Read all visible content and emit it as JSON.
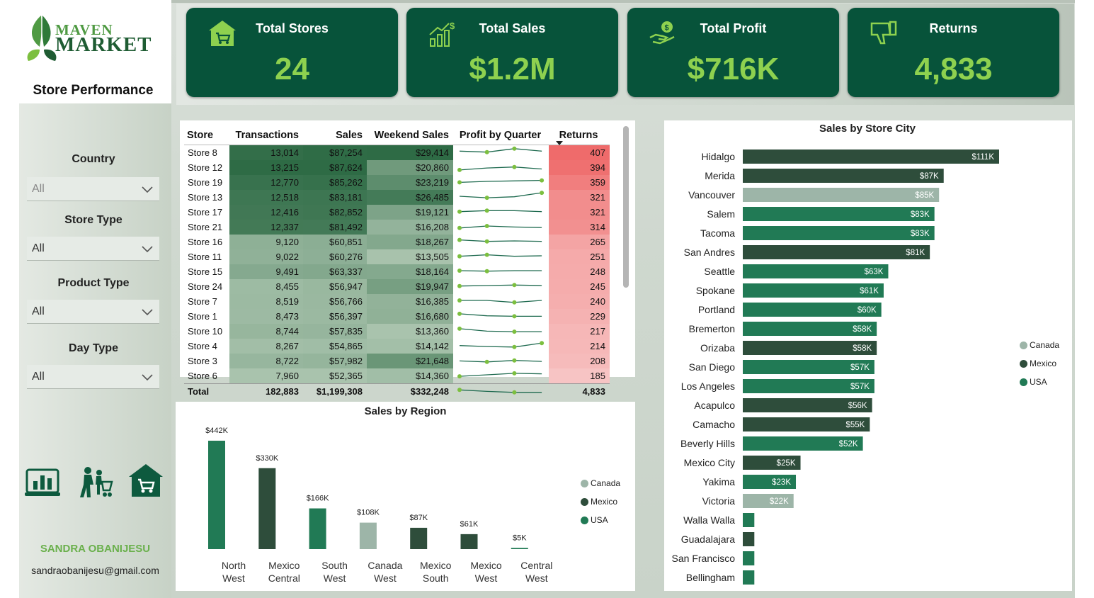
{
  "brand": {
    "line1": "MAVEN",
    "line2": "MARKET"
  },
  "sidebar": {
    "title": "Store Performance",
    "filters": [
      {
        "label": "Country",
        "value": "All"
      },
      {
        "label": "Store Type",
        "value": "All"
      },
      {
        "label": "Product Type",
        "value": "All"
      },
      {
        "label": "Day Type",
        "value": "All"
      }
    ],
    "nav_icons": [
      "bar-chart-icon",
      "shopping-people-icon",
      "store-icon"
    ],
    "author": {
      "name": "SANDRA OBANIJESU",
      "email": "sandraobanijesu@gmail.com"
    }
  },
  "kpis": [
    {
      "title": "Total Stores",
      "value": "24",
      "icon": "store-icon"
    },
    {
      "title": "Total Sales",
      "value": "$1.2M",
      "icon": "growth-chart-icon"
    },
    {
      "title": "Total Profit",
      "value": "$716K",
      "icon": "money-hand-icon"
    },
    {
      "title": "Returns",
      "value": "4,833",
      "icon": "thumbs-down-icon"
    }
  ],
  "colors": {
    "canada": "#9db5a8",
    "mexico": "#2e4d3b",
    "usa": "#217a55",
    "kpi_bg": "#07533a",
    "kpi_value": "#8ed14f",
    "returns": "#ef6b6b",
    "spark": "#1e6a4f",
    "spark_dot": "#7cbf3f"
  },
  "table": {
    "headers": [
      "Store",
      "Transactions",
      "Sales",
      "Weekend Sales",
      "Profit by Quarter",
      "Returns"
    ],
    "rows": [
      {
        "store": "Store 8",
        "transactions": "13,014",
        "sales": "$87,254",
        "weekend": "$29,414",
        "returns": "407",
        "spark": [
          0.55,
          0.45,
          0.8,
          0.55
        ]
      },
      {
        "store": "Store 12",
        "transactions": "13,215",
        "sales": "$87,624",
        "weekend": "$20,860",
        "returns": "394",
        "spark": [
          0.15,
          0.35,
          0.45,
          0.25
        ]
      },
      {
        "store": "Store 19",
        "transactions": "12,770",
        "sales": "$85,262",
        "weekend": "$23,219",
        "returns": "359",
        "spark": [
          0.4,
          0.5,
          0.55,
          0.6
        ]
      },
      {
        "store": "Store 13",
        "transactions": "12,518",
        "sales": "$83,181",
        "weekend": "$26,485",
        "returns": "321",
        "spark": [
          0.5,
          0.35,
          0.45,
          0.85
        ]
      },
      {
        "store": "Store 17",
        "transactions": "12,416",
        "sales": "$82,852",
        "weekend": "$19,121",
        "returns": "321",
        "spark": [
          0.45,
          0.55,
          0.55,
          0.45
        ]
      },
      {
        "store": "Store 21",
        "transactions": "12,337",
        "sales": "$81,492",
        "weekend": "$16,208",
        "returns": "314",
        "spark": [
          0.3,
          0.5,
          0.4,
          0.35
        ]
      },
      {
        "store": "Store 16",
        "transactions": "9,120",
        "sales": "$60,851",
        "weekend": "$18,267",
        "returns": "265",
        "spark": [
          0.6,
          0.45,
          0.5,
          0.45
        ]
      },
      {
        "store": "Store 11",
        "transactions": "9,022",
        "sales": "$60,276",
        "weekend": "$13,505",
        "returns": "251",
        "spark": [
          0.45,
          0.6,
          0.45,
          0.5
        ]
      },
      {
        "store": "Store 15",
        "transactions": "9,491",
        "sales": "$63,337",
        "weekend": "$18,164",
        "returns": "248",
        "spark": [
          0.5,
          0.45,
          0.5,
          0.5
        ]
      },
      {
        "store": "Store 24",
        "transactions": "8,455",
        "sales": "$56,947",
        "weekend": "$19,947",
        "returns": "245",
        "spark": [
          0.45,
          0.5,
          0.55,
          0.5
        ]
      },
      {
        "store": "Store 7",
        "transactions": "8,519",
        "sales": "$56,766",
        "weekend": "$16,385",
        "returns": "240",
        "spark": [
          0.5,
          0.5,
          0.3,
          0.5
        ]
      },
      {
        "store": "Store 1",
        "transactions": "8,473",
        "sales": "$56,397",
        "weekend": "$16,680",
        "returns": "229",
        "spark": [
          0.65,
          0.45,
          0.4,
          0.4
        ]
      },
      {
        "store": "Store 10",
        "transactions": "8,744",
        "sales": "$57,835",
        "weekend": "$13,360",
        "returns": "217",
        "spark": [
          0.65,
          0.4,
          0.35,
          0.35
        ]
      },
      {
        "store": "Store 4",
        "transactions": "8,267",
        "sales": "$54,865",
        "weekend": "$14,142",
        "returns": "214",
        "spark": [
          0.45,
          0.35,
          0.3,
          0.7
        ]
      },
      {
        "store": "Store 3",
        "transactions": "8,722",
        "sales": "$57,982",
        "weekend": "$21,648",
        "returns": "208",
        "spark": [
          0.4,
          0.3,
          0.45,
          0.35
        ]
      },
      {
        "store": "Store 6",
        "transactions": "7,960",
        "sales": "$52,365",
        "weekend": "$14,360",
        "returns": "185",
        "spark": [
          0.35,
          0.5,
          0.65,
          0.6
        ]
      }
    ],
    "total": {
      "label": "Total",
      "transactions": "182,883",
      "sales": "$1,199,308",
      "weekend": "$332,248",
      "returns": "4,833",
      "spark": [
        0.55,
        0.4,
        0.3,
        0.3
      ]
    }
  },
  "chart_data": [
    {
      "type": "bar",
      "title": "Sales by Region",
      "categories": [
        "North West",
        "Mexico Central",
        "South West",
        "Canada West",
        "Mexico South",
        "Mexico West",
        "Central West"
      ],
      "category_lines": [
        [
          "North",
          "West"
        ],
        [
          "Mexico",
          "Central"
        ],
        [
          "South",
          "West"
        ],
        [
          "Canada",
          "West"
        ],
        [
          "Mexico",
          "South"
        ],
        [
          "Mexico",
          "West"
        ],
        [
          "Central",
          "West"
        ]
      ],
      "values": [
        442,
        330,
        166,
        108,
        87,
        61,
        5
      ],
      "labels": [
        "$442K",
        "$330K",
        "$166K",
        "$108K",
        "$87K",
        "$61K",
        "$5K"
      ],
      "country": [
        "USA",
        "Mexico",
        "USA",
        "Canada",
        "Mexico",
        "Mexico",
        "USA"
      ],
      "unit": "$K",
      "legend": [
        "Canada",
        "Mexico",
        "USA"
      ],
      "legend_position": "right"
    },
    {
      "type": "bar",
      "orientation": "horizontal",
      "title": "Sales by Store City",
      "categories": [
        "Hidalgo",
        "Merida",
        "Vancouver",
        "Salem",
        "Tacoma",
        "San Andres",
        "Seattle",
        "Spokane",
        "Portland",
        "Bremerton",
        "Orizaba",
        "San Diego",
        "Los Angeles",
        "Acapulco",
        "Camacho",
        "Beverly Hills",
        "Mexico City",
        "Yakima",
        "Victoria",
        "Walla Walla",
        "Guadalajara",
        "San Francisco",
        "Bellingham"
      ],
      "values": [
        111,
        87,
        85,
        83,
        83,
        81,
        63,
        61,
        60,
        58,
        58,
        57,
        57,
        56,
        55,
        52,
        25,
        23,
        22,
        5,
        5,
        5,
        5
      ],
      "labels": [
        "$111K",
        "$87K",
        "$85K",
        "$83K",
        "$83K",
        "$81K",
        "$63K",
        "$61K",
        "$60K",
        "$58K",
        "$58K",
        "$57K",
        "$57K",
        "$56K",
        "$55K",
        "$52K",
        "$25K",
        "$23K",
        "$22K",
        "",
        "",
        "",
        ""
      ],
      "country": [
        "Mexico",
        "Mexico",
        "Canada",
        "USA",
        "USA",
        "Mexico",
        "USA",
        "USA",
        "USA",
        "USA",
        "Mexico",
        "USA",
        "USA",
        "Mexico",
        "Mexico",
        "USA",
        "Mexico",
        "USA",
        "Canada",
        "USA",
        "Mexico",
        "USA",
        "USA"
      ],
      "unit": "$K",
      "legend": [
        "Canada",
        "Mexico",
        "USA"
      ],
      "legend_position": "right"
    }
  ]
}
